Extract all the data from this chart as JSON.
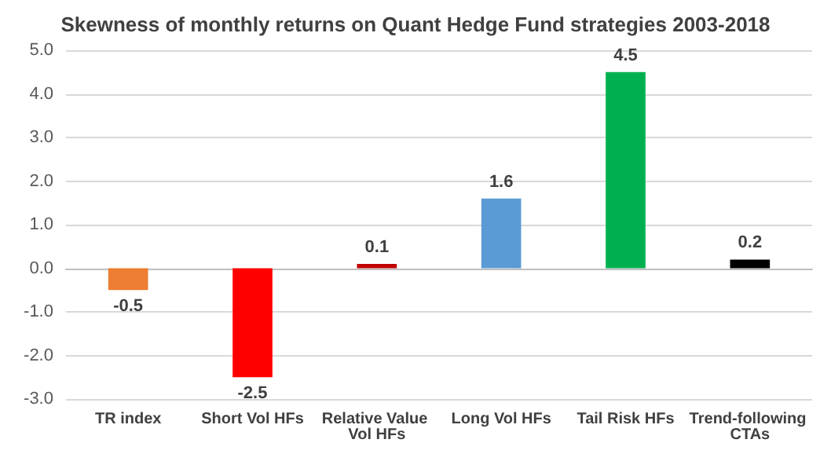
{
  "chart_data": {
    "type": "bar",
    "title": "Skewness of monthly returns on Quant Hedge Fund strategies 2003-2018",
    "categories": [
      "TR index",
      "Short Vol HFs",
      "Relative Value Vol HFs",
      "Long Vol HFs",
      "Tail Risk HFs",
      "Trend-following CTAs"
    ],
    "values": [
      -0.5,
      -2.5,
      0.1,
      1.6,
      4.5,
      0.2
    ],
    "colors": [
      "#ed7d31",
      "#ff0000",
      "#c00000",
      "#5b9bd5",
      "#00b050",
      "#000000"
    ],
    "ylim": [
      -3,
      5
    ],
    "yticks": [
      {
        "value": -3,
        "label": "-3.0"
      },
      {
        "value": -2,
        "label": "-2.0"
      },
      {
        "value": -1,
        "label": "-1.0"
      },
      {
        "value": 0,
        "label": "0.0"
      },
      {
        "value": 1,
        "label": "1.0"
      },
      {
        "value": 2,
        "label": "2.0"
      },
      {
        "value": 3,
        "label": "3.0"
      },
      {
        "value": 4,
        "label": "4.0"
      },
      {
        "value": 5,
        "label": "5.0"
      }
    ],
    "grid": true,
    "data_labels": true
  }
}
